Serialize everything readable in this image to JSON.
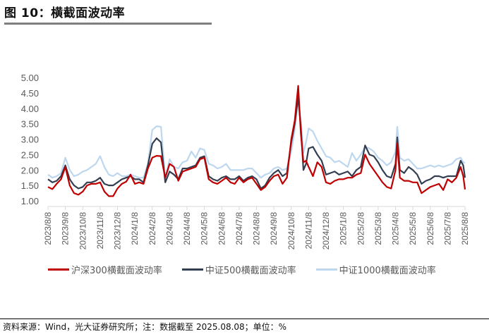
{
  "header": {
    "title": "图 10：横截面波动率"
  },
  "footer": {
    "source": "资料来源：Wind，光大证券研究所；注：数据截至 2025.08.08；单位：%"
  },
  "colors": {
    "hs300": "#c00000",
    "zz500": "#333f50",
    "zz1000": "#bdd7ee",
    "axis": "#d9d9d9",
    "tick_text": "#595959"
  },
  "chart_data": {
    "type": "line",
    "title": "横截面波动率",
    "xlabel": "",
    "ylabel": "",
    "ylim": [
      1.0,
      5.0
    ],
    "yticks": [
      "1.00",
      "1.50",
      "2.00",
      "2.50",
      "3.00",
      "3.50",
      "4.00",
      "4.50",
      "5.00"
    ],
    "grid": false,
    "legend_position": "bottom",
    "x_tick_labels": [
      "2023/8/8",
      "2023/9/8",
      "2023/10/8",
      "2023/11/8",
      "2023/12/8",
      "2024/1/8",
      "2024/2/8",
      "2024/3/8",
      "2024/4/8",
      "2024/5/8",
      "2024/6/8",
      "2024/7/8",
      "2024/8/8",
      "2024/9/8",
      "2024/10/8",
      "2024/11/8",
      "2024/12/8",
      "2025/1/8",
      "2025/2/8",
      "2025/3/8",
      "2025/4/8",
      "2025/5/8",
      "2025/6/8",
      "2025/7/8",
      "2025/8/8"
    ],
    "x": [
      0,
      0.25,
      0.5,
      0.75,
      1,
      1.25,
      1.5,
      1.75,
      2,
      2.25,
      2.5,
      2.75,
      3,
      3.25,
      3.5,
      3.75,
      4,
      4.25,
      4.5,
      4.75,
      5,
      5.25,
      5.5,
      5.75,
      6,
      6.25,
      6.5,
      6.75,
      7,
      7.25,
      7.5,
      7.75,
      8,
      8.25,
      8.5,
      8.75,
      9,
      9.25,
      9.5,
      9.75,
      10,
      10.25,
      10.5,
      10.75,
      11,
      11.25,
      11.5,
      11.75,
      12,
      12.25,
      12.5,
      12.75,
      13,
      13.25,
      13.5,
      13.75,
      14,
      14.2,
      14.4,
      14.55,
      14.7,
      14.85,
      15,
      15.25,
      15.5,
      15.75,
      16,
      16.25,
      16.5,
      16.75,
      17,
      17.25,
      17.5,
      17.75,
      18,
      18.25,
      18.5,
      18.75,
      19,
      19.25,
      19.5,
      19.75,
      20,
      20.1,
      20.25,
      20.5,
      20.75,
      21,
      21.25,
      21.5,
      21.75,
      22,
      22.25,
      22.5,
      22.75,
      23,
      23.25,
      23.5,
      23.75,
      23.9,
      24
    ],
    "series": [
      {
        "name": "沪深300横截面波动率",
        "color": "#c00000",
        "values": [
          1.45,
          1.38,
          1.55,
          1.7,
          2.1,
          1.5,
          1.25,
          1.2,
          1.3,
          1.5,
          1.55,
          1.55,
          1.6,
          1.3,
          1.15,
          1.15,
          1.4,
          1.55,
          1.62,
          1.85,
          1.55,
          1.6,
          1.55,
          2.05,
          2.4,
          2.46,
          2.45,
          1.75,
          2.2,
          2.1,
          1.65,
          1.95,
          2.0,
          2.05,
          2.1,
          2.35,
          2.4,
          1.7,
          1.6,
          1.55,
          1.65,
          1.75,
          1.6,
          1.55,
          1.75,
          1.6,
          1.7,
          1.75,
          1.55,
          1.35,
          1.45,
          1.65,
          1.8,
          1.85,
          1.55,
          1.75,
          3.0,
          3.6,
          4.73,
          3.2,
          2.25,
          2.3,
          2.1,
          1.8,
          2.25,
          2.1,
          1.6,
          1.55,
          1.65,
          1.7,
          1.7,
          1.75,
          1.75,
          1.85,
          1.9,
          2.5,
          2.2,
          2.0,
          1.8,
          1.6,
          1.45,
          1.4,
          2.0,
          2.87,
          1.75,
          1.65,
          1.65,
          1.6,
          1.6,
          1.25,
          1.35,
          1.45,
          1.5,
          1.55,
          1.35,
          1.7,
          1.6,
          1.75,
          2.1,
          1.8,
          1.37
        ]
      },
      {
        "name": "中证500横截面波动率",
        "color": "#333f50",
        "values": [
          1.7,
          1.6,
          1.65,
          1.8,
          2.15,
          1.7,
          1.5,
          1.4,
          1.45,
          1.6,
          1.6,
          1.65,
          1.75,
          1.55,
          1.5,
          1.5,
          1.6,
          1.7,
          1.75,
          1.8,
          1.7,
          1.7,
          1.6,
          2.15,
          2.85,
          3.03,
          2.9,
          1.6,
          1.95,
          1.85,
          1.7,
          2.05,
          2.05,
          2.1,
          2.15,
          2.4,
          2.45,
          1.8,
          1.7,
          1.65,
          1.75,
          1.8,
          1.7,
          1.7,
          1.8,
          1.65,
          1.75,
          1.8,
          1.7,
          1.4,
          1.5,
          1.75,
          1.9,
          2.0,
          1.8,
          1.9,
          2.9,
          3.5,
          4.36,
          3.4,
          2.0,
          2.2,
          2.7,
          2.75,
          2.5,
          2.3,
          1.85,
          1.9,
          1.95,
          1.85,
          1.9,
          1.95,
          1.8,
          2.0,
          2.1,
          2.8,
          2.5,
          2.45,
          2.25,
          2.0,
          1.8,
          1.75,
          2.2,
          3.06,
          2.0,
          1.9,
          2.1,
          2.0,
          1.85,
          1.55,
          1.65,
          1.7,
          1.8,
          1.8,
          1.75,
          1.8,
          1.8,
          1.8,
          2.3,
          2.15,
          1.75
        ]
      },
      {
        "name": "中证1000横截面波动率",
        "color": "#bdd7ee",
        "values": [
          1.85,
          1.75,
          1.8,
          1.9,
          2.4,
          2.0,
          1.8,
          1.85,
          1.95,
          2.0,
          2.1,
          2.2,
          2.45,
          2.1,
          1.85,
          1.8,
          1.9,
          1.8,
          1.8,
          1.85,
          1.8,
          1.75,
          1.75,
          2.2,
          3.3,
          3.42,
          3.4,
          1.75,
          2.35,
          2.1,
          2.05,
          2.25,
          2.3,
          2.6,
          2.4,
          2.7,
          2.65,
          2.2,
          2.15,
          2.05,
          2.1,
          2.2,
          2.0,
          2.0,
          2.0,
          2.0,
          2.05,
          2.05,
          1.9,
          1.75,
          1.85,
          1.9,
          2.05,
          2.1,
          2.0,
          2.05,
          2.6,
          3.3,
          4.3,
          3.6,
          2.55,
          2.9,
          3.35,
          3.25,
          2.95,
          2.7,
          2.45,
          2.4,
          2.25,
          2.3,
          2.2,
          2.1,
          2.55,
          2.3,
          2.5,
          2.75,
          2.7,
          2.6,
          2.4,
          2.3,
          2.15,
          2.25,
          2.6,
          3.4,
          2.4,
          2.3,
          2.35,
          2.2,
          2.05,
          2.05,
          2.1,
          2.15,
          2.1,
          2.15,
          2.1,
          2.15,
          2.2,
          2.35,
          2.4,
          2.25,
          2.23
        ]
      }
    ]
  },
  "legend": [
    {
      "label": "沪深300横截面波动率"
    },
    {
      "label": "中证500横截面波动率"
    },
    {
      "label": "中证1000横截面波动率"
    }
  ]
}
